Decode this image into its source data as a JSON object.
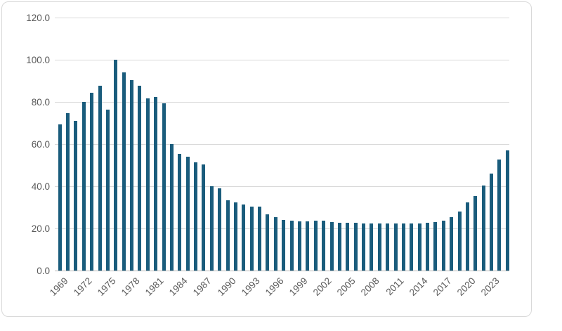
{
  "chart_data": {
    "type": "bar",
    "title": "",
    "xlabel": "",
    "ylabel": "",
    "x": [
      1969,
      1970,
      1971,
      1972,
      1973,
      1974,
      1975,
      1976,
      1977,
      1978,
      1979,
      1980,
      1981,
      1982,
      1983,
      1984,
      1985,
      1986,
      1987,
      1988,
      1989,
      1990,
      1991,
      1992,
      1993,
      1994,
      1995,
      1996,
      1997,
      1998,
      1999,
      2000,
      2001,
      2002,
      2003,
      2004,
      2005,
      2006,
      2007,
      2008,
      2009,
      2010,
      2011,
      2012,
      2013,
      2014,
      2015,
      2016,
      2017,
      2018,
      2019,
      2020,
      2021,
      2022,
      2023,
      2024,
      2025
    ],
    "values": [
      69.3,
      74.7,
      71.0,
      80.0,
      84.3,
      87.6,
      76.2,
      100.0,
      94.0,
      90.4,
      87.6,
      81.8,
      82.5,
      79.5,
      60.0,
      55.2,
      53.9,
      51.4,
      50.4,
      40.0,
      39.1,
      33.2,
      32.3,
      31.2,
      30.2,
      30.3,
      26.8,
      25.2,
      24.0,
      23.6,
      23.3,
      23.3,
      23.6,
      23.6,
      23.1,
      22.6,
      22.8,
      22.8,
      22.5,
      22.3,
      22.2,
      22.2,
      22.5,
      22.5,
      22.5,
      22.5,
      22.8,
      23.1,
      23.6,
      25.2,
      28.1,
      32.4,
      35.5,
      40.5,
      46.0,
      52.8,
      56.9
    ],
    "ylim": [
      0,
      120
    ],
    "y_ticks": [
      120,
      100,
      80,
      60,
      40,
      20,
      0
    ],
    "y_tick_labels": [
      "120.0",
      "100.0",
      "80.0",
      "60.0",
      "40.0",
      "20.0",
      "0.0"
    ],
    "x_tick_labels": [
      "1969",
      "1972",
      "1975",
      "1978",
      "1981",
      "1984",
      "1987",
      "1990",
      "1993",
      "1996",
      "1999",
      "2002",
      "2005",
      "2008",
      "2011",
      "2014",
      "2017",
      "2020",
      "2023"
    ],
    "x_label_interval": 3,
    "grid": "horizontal",
    "legend_position": "none",
    "colors": {
      "bar": "#1a5c7c",
      "gridline": "#d9d9d9",
      "axis_line": "#b7b7b7",
      "tick_label": "#595959",
      "frame_border": "#d8d8d8",
      "background": "#ffffff"
    }
  }
}
